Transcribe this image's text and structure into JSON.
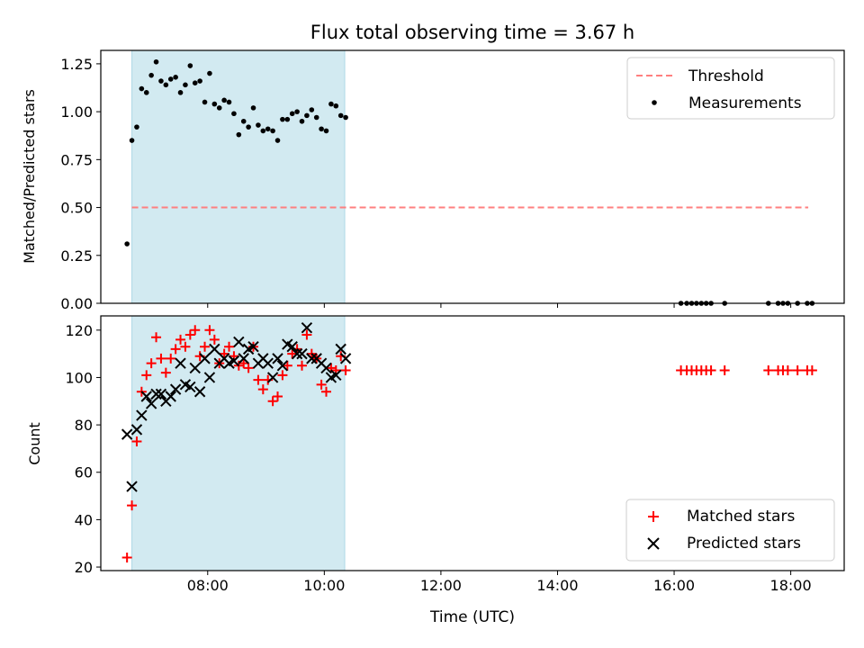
{
  "chart_data": [
    {
      "type": "scatter",
      "title": "Flux total observing time = 3.67 h",
      "xlabel": "",
      "ylabel": "Matched/Predicted stars",
      "xlim": [
        "06:10",
        "18:55"
      ],
      "ylim": [
        0,
        1.32
      ],
      "yticks": [
        0,
        0.25,
        0.5,
        0.75,
        1.0,
        1.25
      ],
      "ytick_labels": [
        "0.00",
        "0.25",
        "0.50",
        "0.75",
        "1.00",
        "1.25"
      ],
      "xticks": [
        "08:00",
        "10:00",
        "12:00",
        "14:00",
        "16:00",
        "18:00"
      ],
      "show_xtick_labels": false,
      "grid": false,
      "legend_position": "top-right",
      "highlight_span": {
        "start": "06:42",
        "end": "10:21",
        "color": "#add8e6"
      },
      "threshold": {
        "name": "Threshold",
        "y": 0.5,
        "x_start": "06:42",
        "x_end": "18:18",
        "color": "#ff7f7f",
        "style": "dashed"
      },
      "series": [
        {
          "name": "Measurements",
          "marker": "dot",
          "color": "#000000",
          "points": [
            [
              "06:37",
              0.31
            ],
            [
              "06:42",
              0.85
            ],
            [
              "06:47",
              0.92
            ],
            [
              "06:52",
              1.12
            ],
            [
              "06:57",
              1.1
            ],
            [
              "07:02",
              1.19
            ],
            [
              "07:07",
              1.26
            ],
            [
              "07:12",
              1.16
            ],
            [
              "07:17",
              1.14
            ],
            [
              "07:22",
              1.17
            ],
            [
              "07:27",
              1.18
            ],
            [
              "07:32",
              1.1
            ],
            [
              "07:37",
              1.14
            ],
            [
              "07:42",
              1.24
            ],
            [
              "07:47",
              1.15
            ],
            [
              "07:52",
              1.16
            ],
            [
              "07:57",
              1.05
            ],
            [
              "08:02",
              1.2
            ],
            [
              "08:07",
              1.04
            ],
            [
              "08:12",
              1.02
            ],
            [
              "08:17",
              1.06
            ],
            [
              "08:22",
              1.05
            ],
            [
              "08:27",
              0.99
            ],
            [
              "08:32",
              0.88
            ],
            [
              "08:37",
              0.95
            ],
            [
              "08:42",
              0.92
            ],
            [
              "08:47",
              1.02
            ],
            [
              "08:52",
              0.93
            ],
            [
              "08:57",
              0.9
            ],
            [
              "09:02",
              0.91
            ],
            [
              "09:07",
              0.9
            ],
            [
              "09:12",
              0.85
            ],
            [
              "09:17",
              0.96
            ],
            [
              "09:22",
              0.96
            ],
            [
              "09:27",
              0.99
            ],
            [
              "09:32",
              1.0
            ],
            [
              "09:37",
              0.95
            ],
            [
              "09:42",
              0.98
            ],
            [
              "09:47",
              1.01
            ],
            [
              "09:52",
              0.97
            ],
            [
              "09:57",
              0.91
            ],
            [
              "10:02",
              0.9
            ],
            [
              "10:07",
              1.04
            ],
            [
              "10:12",
              1.03
            ],
            [
              "10:17",
              0.98
            ],
            [
              "10:22",
              0.97
            ],
            [
              "16:07",
              0.0
            ],
            [
              "16:13",
              0.0
            ],
            [
              "16:18",
              0.0
            ],
            [
              "16:23",
              0.0
            ],
            [
              "16:28",
              0.0
            ],
            [
              "16:33",
              0.0
            ],
            [
              "16:38",
              0.0
            ],
            [
              "16:52",
              0.0
            ],
            [
              "17:37",
              0.0
            ],
            [
              "17:47",
              0.0
            ],
            [
              "17:52",
              0.0
            ],
            [
              "17:57",
              0.0
            ],
            [
              "18:07",
              0.0
            ],
            [
              "18:17",
              0.0
            ],
            [
              "18:22",
              0.0
            ]
          ]
        }
      ]
    },
    {
      "type": "scatter",
      "title": "",
      "xlabel": "Time (UTC)",
      "ylabel": "Count",
      "xlim": [
        "06:10",
        "18:55"
      ],
      "ylim": [
        18.5,
        126
      ],
      "yticks": [
        20,
        40,
        60,
        80,
        100,
        120
      ],
      "ytick_labels": [
        "20",
        "40",
        "60",
        "80",
        "100",
        "120"
      ],
      "xticks": [
        "08:00",
        "10:00",
        "12:00",
        "14:00",
        "16:00",
        "18:00"
      ],
      "xtick_labels": [
        "08:00",
        "10:00",
        "12:00",
        "14:00",
        "16:00",
        "18:00"
      ],
      "grid": false,
      "legend_position": "bottom-right",
      "highlight_span": {
        "start": "06:42",
        "end": "10:21",
        "color": "#add8e6"
      },
      "series": [
        {
          "name": "Matched stars",
          "marker": "plus",
          "color": "#ff0000",
          "points": [
            [
              "06:37",
              24
            ],
            [
              "06:42",
              46
            ],
            [
              "06:47",
              73
            ],
            [
              "06:52",
              94
            ],
            [
              "06:57",
              101
            ],
            [
              "07:02",
              106
            ],
            [
              "07:07",
              117
            ],
            [
              "07:12",
              108
            ],
            [
              "07:17",
              102
            ],
            [
              "07:22",
              108
            ],
            [
              "07:27",
              112
            ],
            [
              "07:32",
              116
            ],
            [
              "07:37",
              113
            ],
            [
              "07:42",
              118
            ],
            [
              "07:47",
              120
            ],
            [
              "07:52",
              109
            ],
            [
              "07:57",
              113
            ],
            [
              "08:02",
              120
            ],
            [
              "08:07",
              116
            ],
            [
              "08:12",
              106
            ],
            [
              "08:17",
              110
            ],
            [
              "08:22",
              113
            ],
            [
              "08:27",
              109
            ],
            [
              "08:32",
              105
            ],
            [
              "08:37",
              106
            ],
            [
              "08:42",
              104
            ],
            [
              "08:47",
              113
            ],
            [
              "08:52",
              99
            ],
            [
              "08:57",
              95
            ],
            [
              "09:02",
              99
            ],
            [
              "09:07",
              90
            ],
            [
              "09:12",
              92
            ],
            [
              "09:17",
              101
            ],
            [
              "09:22",
              105
            ],
            [
              "09:27",
              110
            ],
            [
              "09:32",
              112
            ],
            [
              "09:37",
              105
            ],
            [
              "09:42",
              118
            ],
            [
              "09:47",
              110
            ],
            [
              "09:52",
              108
            ],
            [
              "09:57",
              97
            ],
            [
              "10:02",
              94
            ],
            [
              "10:07",
              104
            ],
            [
              "10:12",
              103
            ],
            [
              "10:17",
              109
            ],
            [
              "10:22",
              103
            ],
            [
              "16:07",
              103
            ],
            [
              "16:13",
              103
            ],
            [
              "16:18",
              103
            ],
            [
              "16:23",
              103
            ],
            [
              "16:28",
              103
            ],
            [
              "16:33",
              103
            ],
            [
              "16:38",
              103
            ],
            [
              "16:52",
              103
            ],
            [
              "17:37",
              103
            ],
            [
              "17:47",
              103
            ],
            [
              "17:52",
              103
            ],
            [
              "17:57",
              103
            ],
            [
              "18:07",
              103
            ],
            [
              "18:17",
              103
            ],
            [
              "18:22",
              103
            ]
          ]
        },
        {
          "name": "Predicted stars",
          "marker": "x",
          "color": "#000000",
          "points": [
            [
              "06:37",
              76
            ],
            [
              "06:42",
              54
            ],
            [
              "06:47",
              78
            ],
            [
              "06:52",
              84
            ],
            [
              "06:57",
              92
            ],
            [
              "07:02",
              89
            ],
            [
              "07:07",
              93
            ],
            [
              "07:12",
              93
            ],
            [
              "07:17",
              90
            ],
            [
              "07:22",
              92
            ],
            [
              "07:27",
              95
            ],
            [
              "07:32",
              106
            ],
            [
              "07:37",
              97
            ],
            [
              "07:42",
              96
            ],
            [
              "07:47",
              104
            ],
            [
              "07:52",
              94
            ],
            [
              "07:57",
              108
            ],
            [
              "08:02",
              100
            ],
            [
              "08:07",
              112
            ],
            [
              "08:12",
              106
            ],
            [
              "08:17",
              108
            ],
            [
              "08:22",
              106
            ],
            [
              "08:27",
              107
            ],
            [
              "08:32",
              115
            ],
            [
              "08:37",
              108
            ],
            [
              "08:42",
              112
            ],
            [
              "08:47",
              113
            ],
            [
              "08:52",
              106
            ],
            [
              "08:57",
              108
            ],
            [
              "09:02",
              106
            ],
            [
              "09:07",
              100
            ],
            [
              "09:12",
              108
            ],
            [
              "09:17",
              105
            ],
            [
              "09:22",
              114
            ],
            [
              "09:27",
              113
            ],
            [
              "09:32",
              110
            ],
            [
              "09:37",
              110
            ],
            [
              "09:42",
              121
            ],
            [
              "09:47",
              108
            ],
            [
              "09:52",
              108
            ],
            [
              "09:57",
              106
            ],
            [
              "10:02",
              104
            ],
            [
              "10:07",
              100
            ],
            [
              "10:12",
              101
            ],
            [
              "10:17",
              112
            ],
            [
              "10:22",
              108
            ]
          ]
        }
      ]
    }
  ]
}
